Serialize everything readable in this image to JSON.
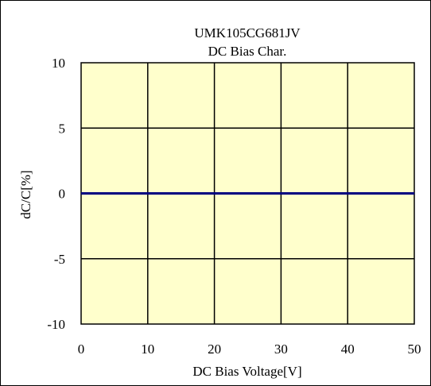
{
  "chart_data": {
    "type": "line",
    "title": "UMK105CG681JV",
    "subtitle": "DC Bias Char.",
    "xlabel": "DC Bias Voltage[V]",
    "ylabel": "dC/C[%]",
    "xlim": [
      0,
      50
    ],
    "ylim": [
      -10,
      10
    ],
    "x_ticks": [
      0,
      10,
      20,
      30,
      40,
      50
    ],
    "y_ticks": [
      10,
      5,
      0,
      -5,
      -10
    ],
    "x_tick_labels": [
      "0",
      "10",
      "20",
      "30",
      "40",
      "50"
    ],
    "y_tick_labels": [
      "10",
      "5",
      "0",
      "-5",
      "-10"
    ],
    "grid": true,
    "legend": "none",
    "plot_background": "#ffffcc",
    "grid_color": "#000000",
    "series": [
      {
        "color": "#000080",
        "x": [
          0,
          10,
          20,
          30,
          40,
          50
        ],
        "y": [
          0,
          0,
          0,
          0,
          0,
          0
        ]
      }
    ]
  }
}
